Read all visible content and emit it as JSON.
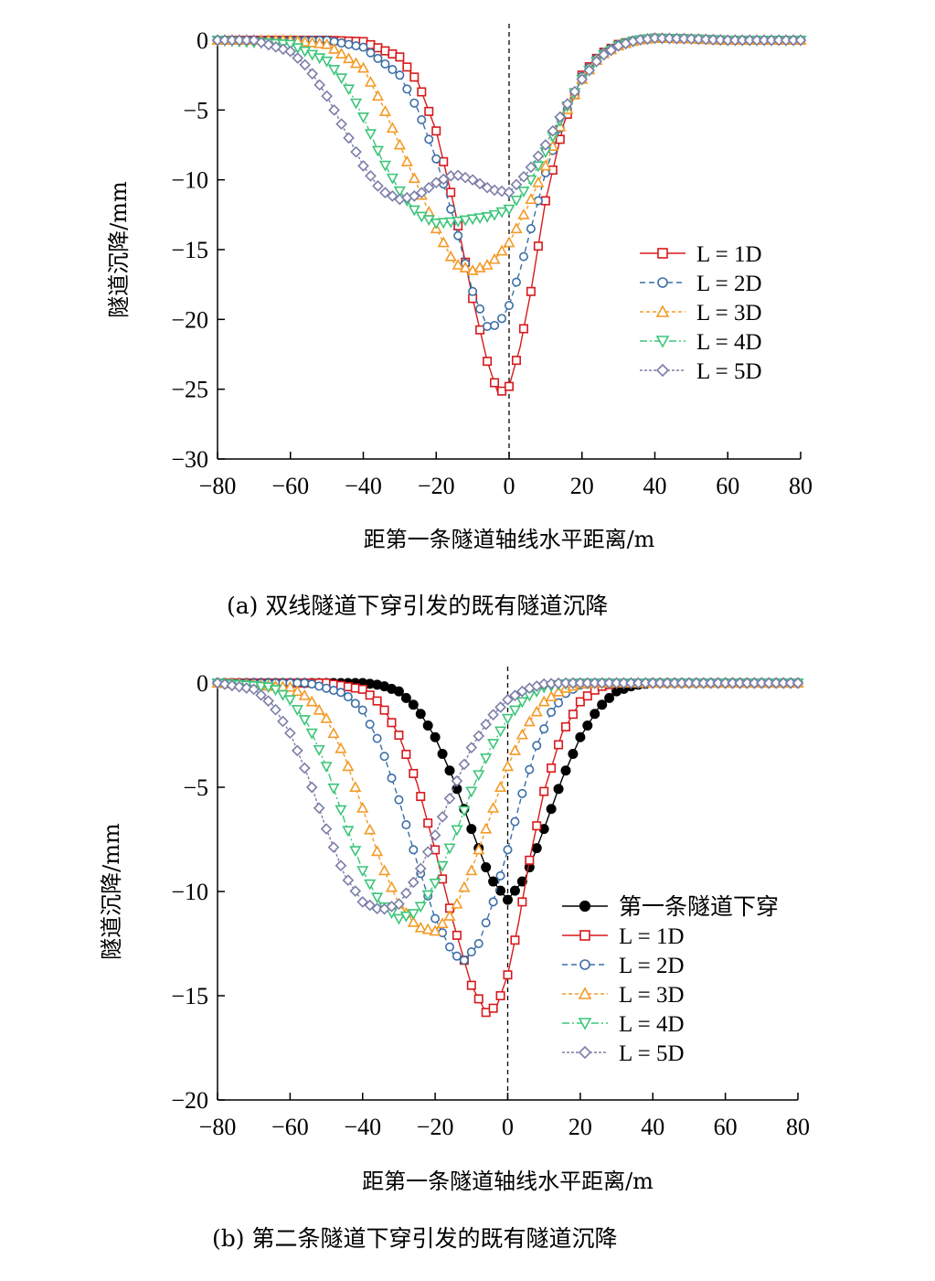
{
  "figure": {
    "caption_a": "(a)  双线隧道下穿引发的既有隧道沉降",
    "caption_b": "(b)  第二条隧道下穿引发的既有隧道沉降"
  },
  "chart_data": [
    {
      "type": "line",
      "xlabel": "距第一条隧道轴线水平距离/m",
      "ylabel": "隧道沉降/mm",
      "xlim": [
        -80,
        80
      ],
      "ylim": [
        -30,
        0
      ],
      "xticks": [
        -80,
        -60,
        -40,
        -20,
        0,
        20,
        40,
        60,
        80
      ],
      "yticks": [
        0,
        -5,
        -10,
        -15,
        -20,
        -25,
        -30
      ],
      "vline_x": 0,
      "legend_position": "right",
      "series": [
        {
          "label": "L = 1D",
          "color": "#d7191c",
          "marker": "square",
          "dash": "",
          "points": [
            [
              -80,
              0
            ],
            [
              -50,
              0
            ],
            [
              -40,
              -0.1
            ],
            [
              -30,
              -1.2
            ],
            [
              -25,
              -3
            ],
            [
              -20,
              -6.5
            ],
            [
              -15,
              -12
            ],
            [
              -10,
              -18.5
            ],
            [
              -6,
              -23
            ],
            [
              -3,
              -25.3
            ],
            [
              0,
              -24.8
            ],
            [
              3,
              -22
            ],
            [
              6,
              -18
            ],
            [
              10,
              -11.5
            ],
            [
              15,
              -6
            ],
            [
              20,
              -2.5
            ],
            [
              25,
              -1
            ],
            [
              30,
              -0.3
            ],
            [
              35,
              0
            ],
            [
              40,
              0.15
            ],
            [
              50,
              0.1
            ],
            [
              60,
              0
            ],
            [
              80,
              0
            ]
          ]
        },
        {
          "label": "L = 2D",
          "color": "#3a6ea5",
          "marker": "circle",
          "dash": "6,4",
          "points": [
            [
              -80,
              0
            ],
            [
              -50,
              0
            ],
            [
              -40,
              -0.5
            ],
            [
              -30,
              -2.5
            ],
            [
              -25,
              -5
            ],
            [
              -20,
              -8.5
            ],
            [
              -15,
              -13
            ],
            [
              -10,
              -18
            ],
            [
              -6,
              -20.5
            ],
            [
              -3,
              -20.4
            ],
            [
              0,
              -19
            ],
            [
              3,
              -16.5
            ],
            [
              6,
              -13.5
            ],
            [
              10,
              -9.5
            ],
            [
              15,
              -5.5
            ],
            [
              20,
              -2.6
            ],
            [
              25,
              -1
            ],
            [
              30,
              -0.3
            ],
            [
              35,
              0.05
            ],
            [
              40,
              0.15
            ],
            [
              50,
              0.1
            ],
            [
              60,
              0
            ],
            [
              80,
              0
            ]
          ]
        },
        {
          "label": "L = 3D",
          "color": "#f39a26",
          "marker": "triangle-up",
          "dash": "4,3",
          "points": [
            [
              -80,
              0
            ],
            [
              -60,
              0
            ],
            [
              -50,
              -0.3
            ],
            [
              -40,
              -2
            ],
            [
              -35,
              -4.5
            ],
            [
              -30,
              -7.5
            ],
            [
              -25,
              -10.5
            ],
            [
              -20,
              -13.5
            ],
            [
              -15,
              -16
            ],
            [
              -10,
              -16.5
            ],
            [
              -5,
              -16
            ],
            [
              0,
              -14.5
            ],
            [
              5,
              -12
            ],
            [
              10,
              -9
            ],
            [
              15,
              -5.5
            ],
            [
              20,
              -2.8
            ],
            [
              25,
              -1.1
            ],
            [
              30,
              -0.4
            ],
            [
              35,
              0
            ],
            [
              40,
              0.15
            ],
            [
              50,
              0.1
            ],
            [
              60,
              0
            ],
            [
              80,
              0
            ]
          ]
        },
        {
          "label": "L = 4D",
          "color": "#3cc57a",
          "marker": "triangle-down",
          "dash": "8,3,2,3",
          "points": [
            [
              -80,
              0
            ],
            [
              -60,
              -0.3
            ],
            [
              -50,
              -1.5
            ],
            [
              -45,
              -3
            ],
            [
              -40,
              -5.5
            ],
            [
              -35,
              -8.5
            ],
            [
              -30,
              -10.8
            ],
            [
              -25,
              -12.5
            ],
            [
              -20,
              -13.1
            ],
            [
              -15,
              -13
            ],
            [
              -10,
              -12.8
            ],
            [
              -5,
              -12.6
            ],
            [
              0,
              -12.1
            ],
            [
              5,
              -10.5
            ],
            [
              10,
              -8
            ],
            [
              15,
              -5.2
            ],
            [
              20,
              -2.8
            ],
            [
              25,
              -1.2
            ],
            [
              30,
              -0.4
            ],
            [
              35,
              0
            ],
            [
              40,
              0.15
            ],
            [
              50,
              0.1
            ],
            [
              60,
              0
            ],
            [
              80,
              0
            ]
          ]
        },
        {
          "label": "L = 5D",
          "color": "#7b7ea8",
          "marker": "diamond",
          "dash": "3,2",
          "points": [
            [
              -80,
              0
            ],
            [
              -70,
              0
            ],
            [
              -60,
              -0.8
            ],
            [
              -55,
              -2
            ],
            [
              -50,
              -4
            ],
            [
              -45,
              -6.5
            ],
            [
              -40,
              -9
            ],
            [
              -35,
              -10.8
            ],
            [
              -30,
              -11.4
            ],
            [
              -25,
              -11.1
            ],
            [
              -20,
              -10.2
            ],
            [
              -15,
              -9.6
            ],
            [
              -10,
              -10
            ],
            [
              -5,
              -10.7
            ],
            [
              0,
              -10.9
            ],
            [
              5,
              -9.5
            ],
            [
              10,
              -7.5
            ],
            [
              15,
              -5
            ],
            [
              20,
              -2.8
            ],
            [
              25,
              -1.2
            ],
            [
              30,
              -0.4
            ],
            [
              35,
              0
            ],
            [
              40,
              0.15
            ],
            [
              50,
              0.1
            ],
            [
              60,
              0
            ],
            [
              80,
              0
            ]
          ]
        }
      ]
    },
    {
      "type": "line",
      "xlabel": "距第一条隧道轴线水平距离/m",
      "ylabel": "隧道沉降/mm",
      "xlim": [
        -80,
        80
      ],
      "ylim": [
        -20,
        0
      ],
      "xticks": [
        -80,
        -60,
        -40,
        -20,
        0,
        20,
        40,
        60,
        80
      ],
      "yticks": [
        0,
        -5,
        -10,
        -15,
        -20
      ],
      "vline_x": 0,
      "legend_position": "right",
      "series": [
        {
          "label": "第一条隧道下穿",
          "color": "#000000",
          "marker": "filled-circle",
          "dash": "",
          "points": [
            [
              -80,
              0
            ],
            [
              -40,
              0
            ],
            [
              -35,
              -0.1
            ],
            [
              -30,
              -0.4
            ],
            [
              -25,
              -1.2
            ],
            [
              -20,
              -2.6
            ],
            [
              -15,
              -4.6
            ],
            [
              -10,
              -7
            ],
            [
              -5,
              -9.3
            ],
            [
              0,
              -10.4
            ],
            [
              5,
              -9.3
            ],
            [
              10,
              -7
            ],
            [
              15,
              -4.6
            ],
            [
              20,
              -2.6
            ],
            [
              25,
              -1.2
            ],
            [
              30,
              -0.4
            ],
            [
              35,
              -0.1
            ],
            [
              40,
              0
            ],
            [
              80,
              0
            ]
          ]
        },
        {
          "label": "L = 1D",
          "color": "#d7191c",
          "marker": "square",
          "dash": "",
          "points": [
            [
              -80,
              0
            ],
            [
              -50,
              0
            ],
            [
              -40,
              -0.3
            ],
            [
              -35,
              -1
            ],
            [
              -30,
              -2.5
            ],
            [
              -25,
              -4.8
            ],
            [
              -20,
              -8
            ],
            [
              -15,
              -11.5
            ],
            [
              -10,
              -14.5
            ],
            [
              -6,
              -15.8
            ],
            [
              -3,
              -15.5
            ],
            [
              0,
              -14
            ],
            [
              3,
              -11.5
            ],
            [
              6,
              -8.5
            ],
            [
              10,
              -5.2
            ],
            [
              15,
              -2.4
            ],
            [
              20,
              -0.9
            ],
            [
              25,
              -0.2
            ],
            [
              30,
              0
            ],
            [
              80,
              0
            ]
          ]
        },
        {
          "label": "L = 2D",
          "color": "#3a6ea5",
          "marker": "circle",
          "dash": "6,4",
          "points": [
            [
              -80,
              0
            ],
            [
              -55,
              0
            ],
            [
              -45,
              -0.5
            ],
            [
              -40,
              -1.3
            ],
            [
              -35,
              -3
            ],
            [
              -30,
              -5.6
            ],
            [
              -25,
              -8.6
            ],
            [
              -20,
              -11.3
            ],
            [
              -15,
              -13
            ],
            [
              -12,
              -13.3
            ],
            [
              -8,
              -12.5
            ],
            [
              -4,
              -10.5
            ],
            [
              0,
              -8
            ],
            [
              4,
              -5.3
            ],
            [
              8,
              -3
            ],
            [
              12,
              -1.4
            ],
            [
              16,
              -0.5
            ],
            [
              20,
              -0.1
            ],
            [
              25,
              0
            ],
            [
              80,
              0
            ]
          ]
        },
        {
          "label": "L = 3D",
          "color": "#f39a26",
          "marker": "triangle-up",
          "dash": "4,3",
          "points": [
            [
              -80,
              0
            ],
            [
              -60,
              -0.2
            ],
            [
              -55,
              -0.7
            ],
            [
              -50,
              -1.7
            ],
            [
              -45,
              -3.5
            ],
            [
              -40,
              -6
            ],
            [
              -35,
              -8.6
            ],
            [
              -30,
              -10.6
            ],
            [
              -25,
              -11.7
            ],
            [
              -20,
              -11.9
            ],
            [
              -15,
              -11
            ],
            [
              -10,
              -9
            ],
            [
              -5,
              -6.5
            ],
            [
              0,
              -4
            ],
            [
              5,
              -2.1
            ],
            [
              10,
              -0.9
            ],
            [
              15,
              -0.3
            ],
            [
              20,
              -0.05
            ],
            [
              25,
              0
            ],
            [
              80,
              0
            ]
          ]
        },
        {
          "label": "L = 4D",
          "color": "#3cc57a",
          "marker": "triangle-down",
          "dash": "8,3,2,3",
          "points": [
            [
              -80,
              0
            ],
            [
              -65,
              -0.2
            ],
            [
              -60,
              -0.8
            ],
            [
              -55,
              -2
            ],
            [
              -50,
              -4
            ],
            [
              -45,
              -6.6
            ],
            [
              -40,
              -9
            ],
            [
              -35,
              -10.6
            ],
            [
              -30,
              -11.3
            ],
            [
              -25,
              -11
            ],
            [
              -20,
              -9.6
            ],
            [
              -15,
              -7.5
            ],
            [
              -10,
              -5.2
            ],
            [
              -5,
              -3.2
            ],
            [
              0,
              -1.7
            ],
            [
              5,
              -0.7
            ],
            [
              10,
              -0.2
            ],
            [
              15,
              -0.05
            ],
            [
              20,
              0
            ],
            [
              80,
              0
            ]
          ]
        },
        {
          "label": "L = 5D",
          "color": "#7b7ea8",
          "marker": "diamond",
          "dash": "3,2",
          "points": [
            [
              -80,
              0
            ],
            [
              -70,
              -0.3
            ],
            [
              -65,
              -1
            ],
            [
              -60,
              -2.4
            ],
            [
              -55,
              -4.5
            ],
            [
              -50,
              -7
            ],
            [
              -45,
              -9.2
            ],
            [
              -40,
              -10.5
            ],
            [
              -35,
              -10.9
            ],
            [
              -30,
              -10.6
            ],
            [
              -25,
              -9.3
            ],
            [
              -20,
              -7.3
            ],
            [
              -15,
              -5.1
            ],
            [
              -10,
              -3.1
            ],
            [
              -5,
              -1.7
            ],
            [
              0,
              -0.8
            ],
            [
              5,
              -0.3
            ],
            [
              10,
              -0.05
            ],
            [
              15,
              0
            ],
            [
              80,
              0
            ]
          ]
        }
      ]
    }
  ]
}
